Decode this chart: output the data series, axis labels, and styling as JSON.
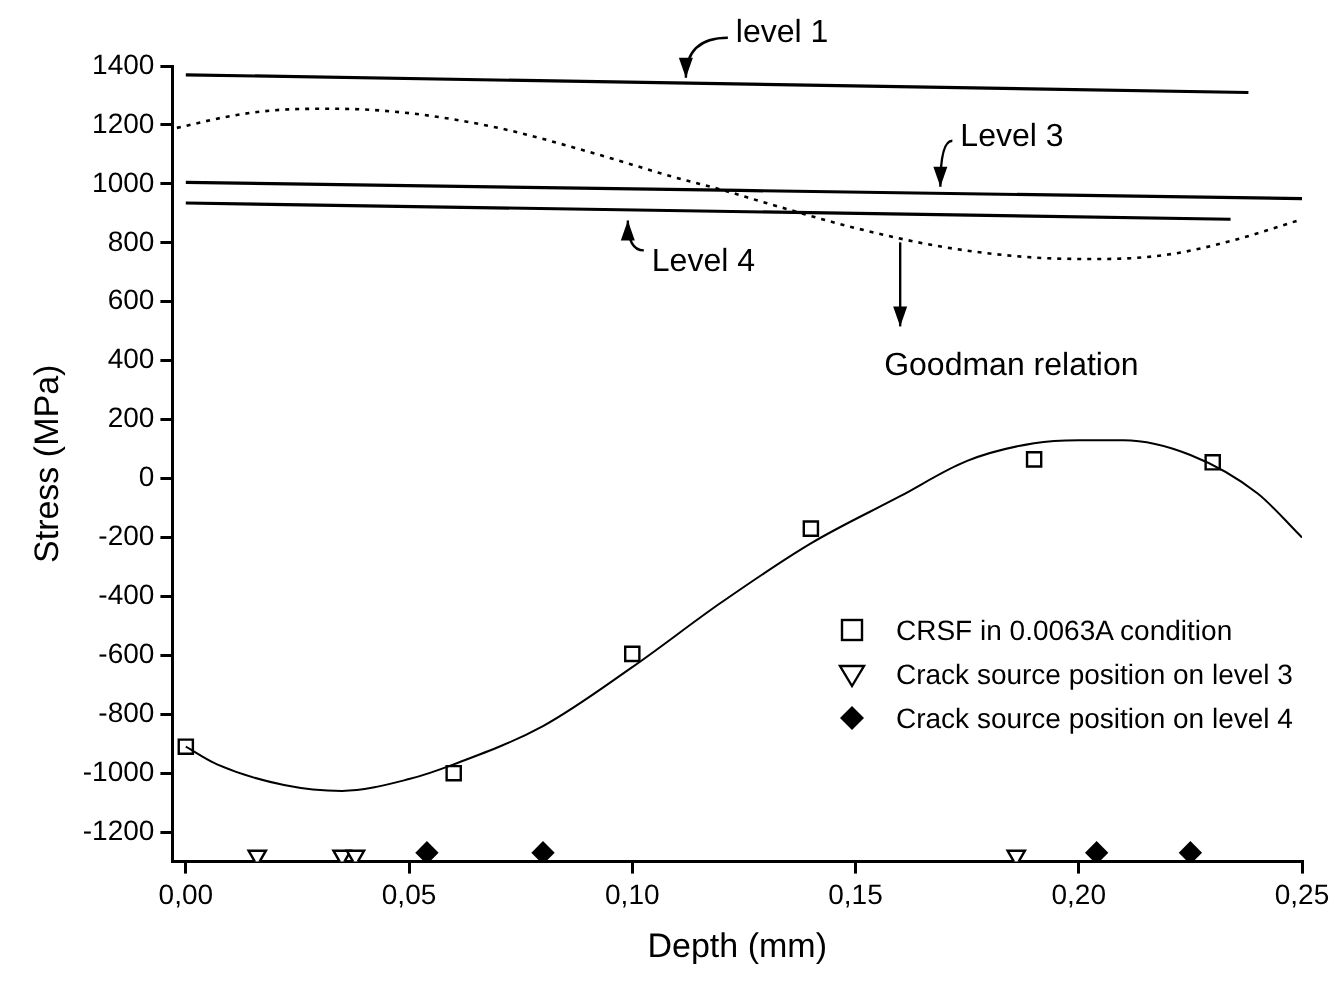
{
  "chart_data": {
    "type": "line",
    "xlabel": "Depth (mm)",
    "ylabel": "Stress (MPa)",
    "xlim": [
      -0.003,
      0.25
    ],
    "xticks": [
      {
        "value": 0,
        "label": "0,00"
      },
      {
        "value": 0.05,
        "label": "0,05"
      },
      {
        "value": 0.1,
        "label": "0,10"
      },
      {
        "value": 0.15,
        "label": "0,15"
      },
      {
        "value": 0.2,
        "label": "0,20"
      },
      {
        "value": 0.25,
        "label": "0,25"
      }
    ],
    "ylim": [
      -1300,
      1400
    ],
    "yticks": [
      -1200,
      -1000,
      -800,
      -600,
      -400,
      -200,
      0,
      200,
      400,
      600,
      800,
      1000,
      1200,
      1400
    ],
    "grid": false,
    "legend": "right",
    "series": [
      {
        "color": "#000000",
        "line_style": "solid",
        "x": [
          0,
          0.238
        ],
        "values": [
          1370,
          1310
        ]
      },
      {
        "color": "#000000",
        "line_style": "solid",
        "x": [
          0,
          0.25
        ],
        "values": [
          1005,
          950
        ]
      },
      {
        "color": "#000000",
        "line_style": "solid",
        "x": [
          0,
          0.234
        ],
        "values": [
          935,
          880
        ]
      },
      {
        "color": "#000000",
        "line_style": "dotted",
        "x": [
          -0.002,
          0.01,
          0.02,
          0.033,
          0.05,
          0.07,
          0.09,
          0.11,
          0.12,
          0.13,
          0.15,
          0.17,
          0.19,
          0.205,
          0.22,
          0.235,
          0.25
        ],
        "values": [
          1190,
          1230,
          1250,
          1255,
          1240,
          1190,
          1110,
          1020,
          980,
          935,
          850,
          785,
          750,
          745,
          760,
          810,
          880
        ]
      },
      {
        "color": "#000000",
        "line_style": "solid",
        "x": [
          0,
          0.007,
          0.022,
          0.035,
          0.05,
          0.06,
          0.08,
          0.1,
          0.12,
          0.14,
          0.16,
          0.175,
          0.19,
          0.2,
          0.21,
          0.225,
          0.24,
          0.25
        ],
        "values": [
          -910,
          -970,
          -1040,
          -1060,
          -1020,
          -970,
          -840,
          -640,
          -420,
          -220,
          -60,
          60,
          120,
          130,
          130,
          80,
          -50,
          -200
        ]
      },
      {
        "type": "scatter",
        "name": "CRSF in 0.0063A condition",
        "color": "#000000",
        "marker": "square",
        "x": [
          0,
          0.06,
          0.1,
          0.14,
          0.19,
          0.23
        ],
        "values": [
          -910,
          -1000,
          -595,
          -170,
          65,
          55
        ]
      },
      {
        "type": "scatter",
        "name": "Crack source position on level 3",
        "color": "#000000",
        "marker": "triangle",
        "x": [
          0.016,
          0.035,
          0.038,
          0.186
        ],
        "values": [
          -1280,
          -1280,
          -1280,
          -1280
        ]
      },
      {
        "type": "scatter",
        "name": "Crack source position on level 4",
        "color": "#000000",
        "marker": "diamond",
        "x": [
          0.054,
          0.08,
          0.204,
          0.225
        ],
        "values": [
          -1270,
          -1270,
          -1270,
          -1270
        ]
      }
    ],
    "annotations": [
      {
        "text": "level 1",
        "x": 0.112,
        "y": 1340
      },
      {
        "text": "Level 3",
        "x": 0.169,
        "y": 970
      },
      {
        "text": "Level 4",
        "x": 0.099,
        "y": 910
      },
      {
        "text": "Goodman relation",
        "x": 0.16,
        "y": 815
      }
    ]
  }
}
